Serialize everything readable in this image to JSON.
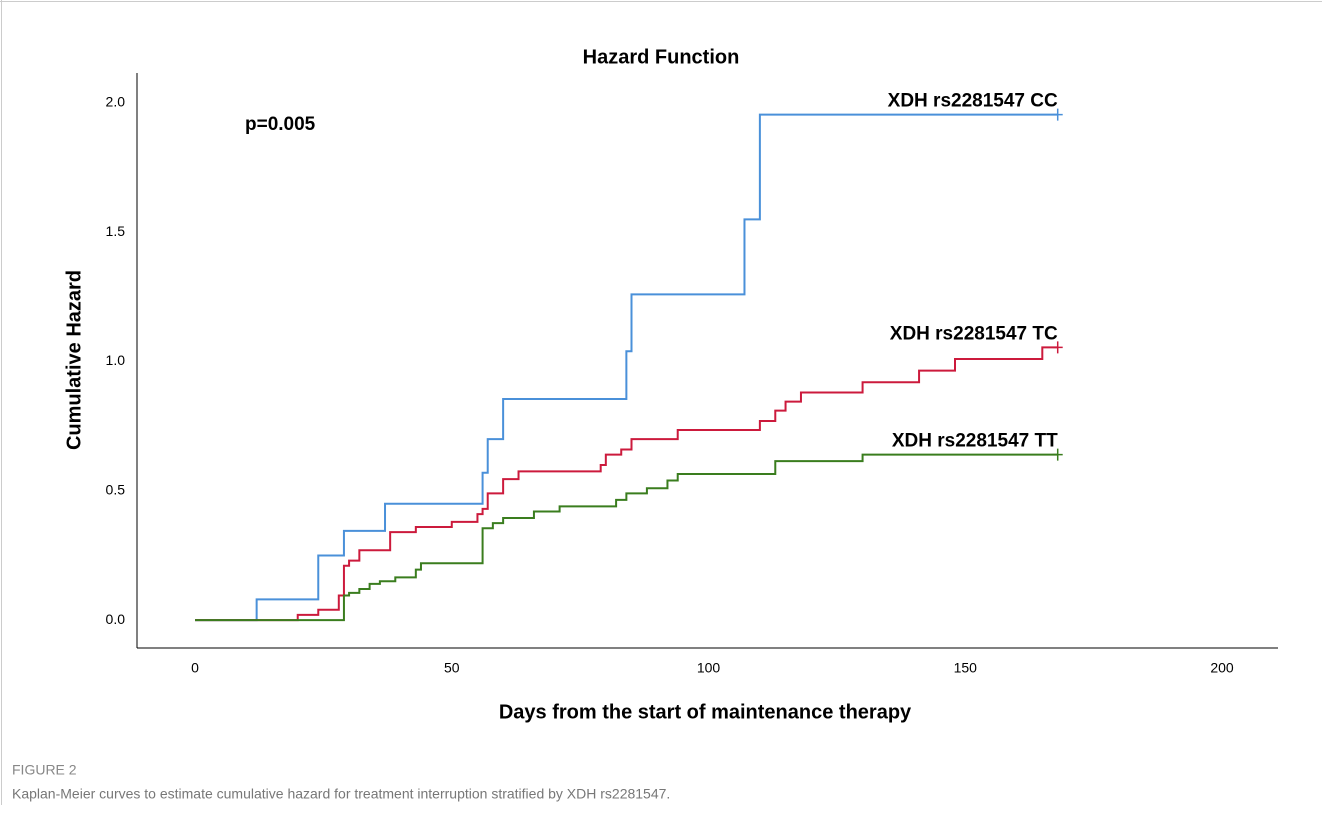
{
  "chart_data": {
    "type": "step",
    "title": "Hazard Function",
    "x_label": "Days from the start of maintenance therapy",
    "y_label": "Cumulative Hazard",
    "annotation": "p=0.005",
    "xlim": [
      -11.3,
      210.9
    ],
    "ylim": [
      -0.108,
      2.116
    ],
    "xticks": [
      0,
      50,
      100,
      150,
      200
    ],
    "yticks": [
      {
        "value": 0,
        "label": "0.0"
      },
      {
        "value": 0.5,
        "label": "0.5"
      },
      {
        "value": 1,
        "label": "1.0"
      },
      {
        "value": 1.5,
        "label": "1.5"
      },
      {
        "value": 2,
        "label": "2.0"
      }
    ],
    "censor_marks": true,
    "series": [
      {
        "name": "XDH rs2281547 CC",
        "color": "#4a90d9",
        "x": [
          0,
          12,
          24,
          29,
          37,
          56,
          57,
          60,
          84,
          85,
          107,
          110,
          168
        ],
        "values": [
          0,
          0.08,
          0.25,
          0.345,
          0.45,
          0.57,
          0.7,
          0.855,
          1.04,
          1.26,
          1.55,
          1.955,
          1.955
        ]
      },
      {
        "name": "XDH rs2281547 TC",
        "color": "#cc1a3c",
        "x": [
          0,
          20,
          24,
          28,
          29,
          30,
          32,
          38,
          43,
          50,
          55,
          56,
          57,
          60,
          63,
          79,
          80,
          83,
          85,
          94,
          110,
          113,
          115,
          118,
          130,
          141,
          148,
          165,
          168
        ],
        "values": [
          0,
          0.02,
          0.04,
          0.095,
          0.21,
          0.23,
          0.27,
          0.34,
          0.36,
          0.38,
          0.41,
          0.43,
          0.49,
          0.545,
          0.575,
          0.6,
          0.64,
          0.66,
          0.7,
          0.735,
          0.77,
          0.81,
          0.845,
          0.88,
          0.92,
          0.965,
          1.01,
          1.055,
          1.055
        ]
      },
      {
        "name": "XDH rs2281547 TT",
        "color": "#3a7d1e",
        "x": [
          0,
          29,
          30,
          32,
          34,
          36,
          39,
          43,
          44,
          56,
          58,
          60,
          66,
          71,
          82,
          84,
          88,
          92,
          94,
          113,
          130,
          168
        ],
        "values": [
          0,
          0.095,
          0.105,
          0.12,
          0.14,
          0.15,
          0.165,
          0.195,
          0.22,
          0.355,
          0.375,
          0.395,
          0.42,
          0.44,
          0.465,
          0.49,
          0.51,
          0.54,
          0.565,
          0.615,
          0.64,
          0.64
        ]
      }
    ]
  },
  "figure_label": "FIGURE 2",
  "caption": "Kaplan-Meier curves to estimate cumulative hazard for treatment interruption stratified by XDH rs2281547."
}
